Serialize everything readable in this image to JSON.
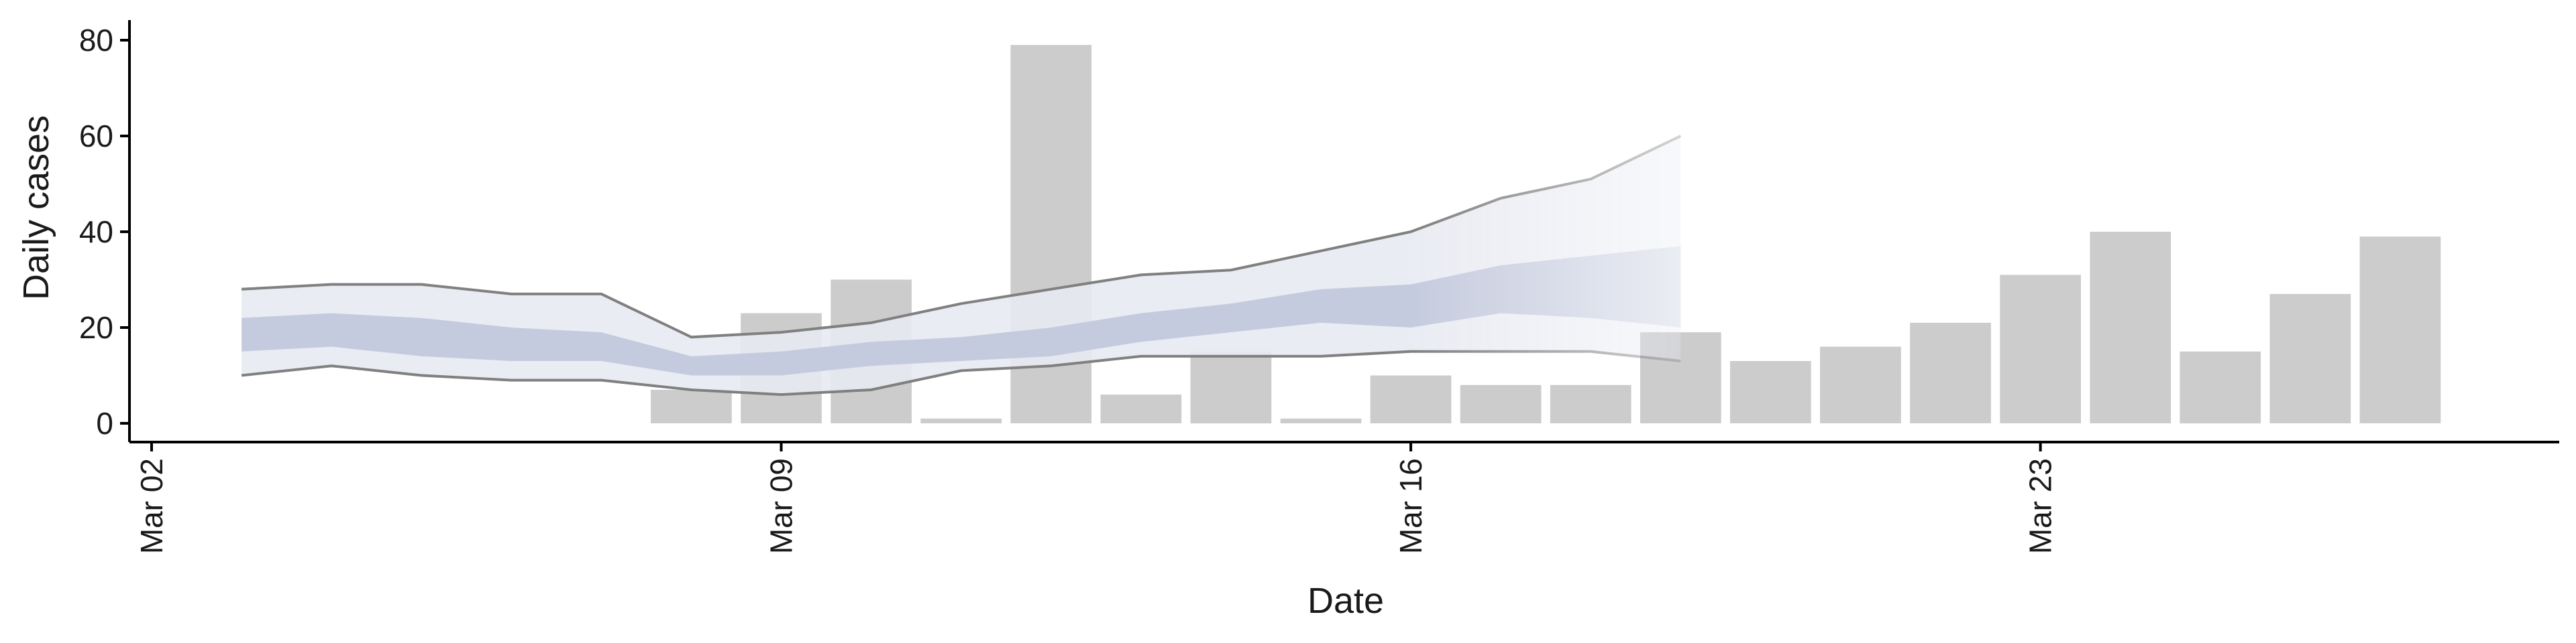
{
  "chart_data": {
    "type": "bar",
    "xlabel": "Date",
    "ylabel": "Daily cases",
    "ylim": [
      -3,
      83
    ],
    "y_ticks": [
      0,
      20,
      40,
      60,
      80
    ],
    "x_ticks": [
      {
        "date": "2020-03-02",
        "label": "Mar 02"
      },
      {
        "date": "2020-03-09",
        "label": "Mar 09"
      },
      {
        "date": "2020-03-16",
        "label": "Mar 16"
      },
      {
        "date": "2020-03-23",
        "label": "Mar 23"
      }
    ],
    "xlim": [
      "2020-03-02",
      "2020-03-28"
    ],
    "grid": false,
    "colors": {
      "bars": "#cccccc",
      "outer_band": "#e8eaf2",
      "inner_band": "#c0c5da",
      "ci_line": "#808080",
      "axis": "#000000"
    },
    "bars": [
      {
        "date": "2020-03-08",
        "value": 7
      },
      {
        "date": "2020-03-09",
        "value": 23
      },
      {
        "date": "2020-03-10",
        "value": 30
      },
      {
        "date": "2020-03-11",
        "value": 1
      },
      {
        "date": "2020-03-12",
        "value": 79
      },
      {
        "date": "2020-03-13",
        "value": 6
      },
      {
        "date": "2020-03-14",
        "value": 15
      },
      {
        "date": "2020-03-15",
        "value": 1
      },
      {
        "date": "2020-03-16",
        "value": 10
      },
      {
        "date": "2020-03-17",
        "value": 8
      },
      {
        "date": "2020-03-18",
        "value": 8
      },
      {
        "date": "2020-03-19",
        "value": 19
      },
      {
        "date": "2020-03-20",
        "value": 13
      },
      {
        "date": "2020-03-21",
        "value": 16
      },
      {
        "date": "2020-03-22",
        "value": 21
      },
      {
        "date": "2020-03-23",
        "value": 31
      },
      {
        "date": "2020-03-24",
        "value": 40
      },
      {
        "date": "2020-03-25",
        "value": 15
      },
      {
        "date": "2020-03-26",
        "value": 27
      },
      {
        "date": "2020-03-27",
        "value": 39
      }
    ],
    "estimate": {
      "dates": [
        "2020-03-03",
        "2020-03-04",
        "2020-03-05",
        "2020-03-06",
        "2020-03-07",
        "2020-03-08",
        "2020-03-09",
        "2020-03-10",
        "2020-03-11",
        "2020-03-12",
        "2020-03-13",
        "2020-03-14",
        "2020-03-15",
        "2020-03-16",
        "2020-03-17",
        "2020-03-18",
        "2020-03-19"
      ],
      "outer_upper": [
        28,
        29,
        29,
        27,
        27,
        18,
        19,
        21,
        25,
        28,
        31,
        32,
        36,
        40,
        47,
        51,
        60
      ],
      "outer_lower": [
        10,
        12,
        10,
        9,
        9,
        7,
        6,
        7,
        11,
        12,
        14,
        14,
        14,
        15,
        15,
        15,
        13
      ],
      "inner_upper": [
        22,
        23,
        22,
        20,
        19,
        14,
        15,
        17,
        18,
        20,
        23,
        25,
        28,
        29,
        33,
        35,
        37
      ],
      "inner_lower": [
        15,
        16,
        14,
        13,
        13,
        10,
        10,
        12,
        13,
        14,
        17,
        19,
        21,
        20,
        23,
        22,
        20
      ],
      "fade_from_date": "2020-03-16"
    }
  }
}
